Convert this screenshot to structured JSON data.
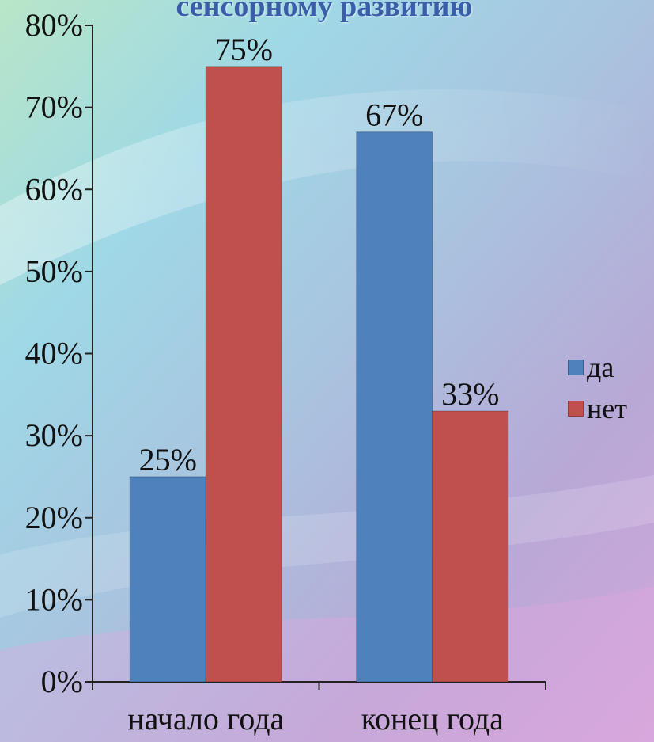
{
  "chart_data": {
    "type": "bar",
    "title": "сенсорному развитию",
    "categories": [
      "начало года",
      "конец года"
    ],
    "series": [
      {
        "name": "да",
        "color": "#4f81bd",
        "values": [
          25,
          67
        ],
        "labels": [
          "25%",
          "67%"
        ]
      },
      {
        "name": "нет",
        "color": "#c0504d",
        "values": [
          75,
          33
        ],
        "labels": [
          "75%",
          "33%"
        ]
      }
    ],
    "ylim": [
      0,
      80
    ],
    "yticks": [
      0,
      10,
      20,
      30,
      40,
      50,
      60,
      70,
      80
    ],
    "ytick_labels": [
      "0%",
      "10%",
      "20%",
      "30%",
      "40%",
      "50%",
      "60%",
      "70%",
      "80%"
    ],
    "legend_position": "right",
    "grid": false
  }
}
